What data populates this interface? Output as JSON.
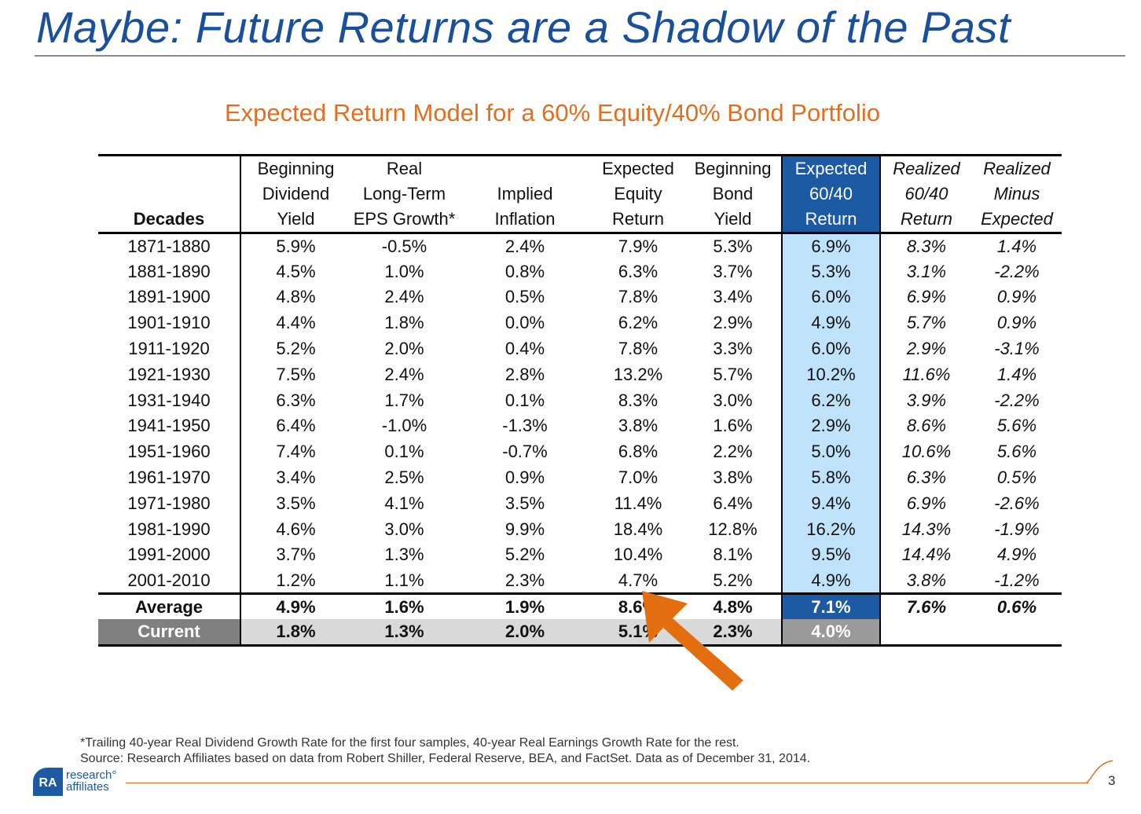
{
  "slide": {
    "title": "Maybe: Future Returns are a Shadow of the Past",
    "table_title": "Expected Return Model for a 60% Equity/40% Bond Portfolio",
    "page_number": "3"
  },
  "table": {
    "headers": {
      "decades": [
        "",
        "",
        "Decades"
      ],
      "dividend_yield": [
        "Beginning",
        "Dividend",
        "Yield"
      ],
      "eps_growth": [
        "Real",
        "Long-Term",
        "EPS Growth*"
      ],
      "inflation": [
        "",
        "Implied",
        "Inflation"
      ],
      "equity_return": [
        "Expected",
        "Equity",
        "Return"
      ],
      "bond_yield": [
        "Beginning",
        "Bond",
        "Yield"
      ],
      "expected_return": [
        "Expected",
        "60/40",
        "Return"
      ],
      "realized_return": [
        "Realized",
        "60/40",
        "Return"
      ],
      "realized_minus": [
        "Realized",
        "Minus",
        "Expected"
      ]
    },
    "rows": [
      [
        "1871-1880",
        "5.9%",
        "-0.5%",
        "2.4%",
        "7.9%",
        "5.3%",
        "6.9%",
        "8.3%",
        "1.4%"
      ],
      [
        "1881-1890",
        "4.5%",
        "1.0%",
        "0.8%",
        "6.3%",
        "3.7%",
        "5.3%",
        "3.1%",
        "-2.2%"
      ],
      [
        "1891-1900",
        "4.8%",
        "2.4%",
        "0.5%",
        "7.8%",
        "3.4%",
        "6.0%",
        "6.9%",
        "0.9%"
      ],
      [
        "1901-1910",
        "4.4%",
        "1.8%",
        "0.0%",
        "6.2%",
        "2.9%",
        "4.9%",
        "5.7%",
        "0.9%"
      ],
      [
        "1911-1920",
        "5.2%",
        "2.0%",
        "0.4%",
        "7.8%",
        "3.3%",
        "6.0%",
        "2.9%",
        "-3.1%"
      ],
      [
        "1921-1930",
        "7.5%",
        "2.4%",
        "2.8%",
        "13.2%",
        "5.7%",
        "10.2%",
        "11.6%",
        "1.4%"
      ],
      [
        "1931-1940",
        "6.3%",
        "1.7%",
        "0.1%",
        "8.3%",
        "3.0%",
        "6.2%",
        "3.9%",
        "-2.2%"
      ],
      [
        "1941-1950",
        "6.4%",
        "-1.0%",
        "-1.3%",
        "3.8%",
        "1.6%",
        "2.9%",
        "8.6%",
        "5.6%"
      ],
      [
        "1951-1960",
        "7.4%",
        "0.1%",
        "-0.7%",
        "6.8%",
        "2.2%",
        "5.0%",
        "10.6%",
        "5.6%"
      ],
      [
        "1961-1970",
        "3.4%",
        "2.5%",
        "0.9%",
        "7.0%",
        "3.8%",
        "5.8%",
        "6.3%",
        "0.5%"
      ],
      [
        "1971-1980",
        "3.5%",
        "4.1%",
        "3.5%",
        "11.4%",
        "6.4%",
        "9.4%",
        "6.9%",
        "-2.6%"
      ],
      [
        "1981-1990",
        "4.6%",
        "3.0%",
        "9.9%",
        "18.4%",
        "12.8%",
        "16.2%",
        "14.3%",
        "-1.9%"
      ],
      [
        "1991-2000",
        "3.7%",
        "1.3%",
        "5.2%",
        "10.4%",
        "8.1%",
        "9.5%",
        "14.4%",
        "4.9%"
      ],
      [
        "2001-2010",
        "1.2%",
        "1.1%",
        "2.3%",
        "4.7%",
        "5.2%",
        "4.9%",
        "3.8%",
        "-1.2%"
      ]
    ],
    "average": [
      "Average",
      "4.9%",
      "1.6%",
      "1.9%",
      "8.6%",
      "4.8%",
      "7.1%",
      "7.6%",
      "0.6%"
    ],
    "current": [
      "Current",
      "1.8%",
      "1.3%",
      "2.0%",
      "5.1%",
      "2.3%",
      "4.0%"
    ]
  },
  "footnote": {
    "line1": "*Trailing 40-year Real Dividend Growth Rate for the first four samples, 40-year Real Earnings Growth Rate for the rest.",
    "line2": "Source: Research Affiliates based on data from Robert Shiller, Federal Reserve, BEA, and FactSet. Data as of December 31, 2014."
  },
  "logo": {
    "mark": "RA",
    "line1": "research°",
    "line2": "affiliates"
  },
  "colors": {
    "title": "#1a4f9c",
    "accent": "#e07020",
    "highlight": "#1c5aa3",
    "highlight_light": "#bfe3fb"
  }
}
